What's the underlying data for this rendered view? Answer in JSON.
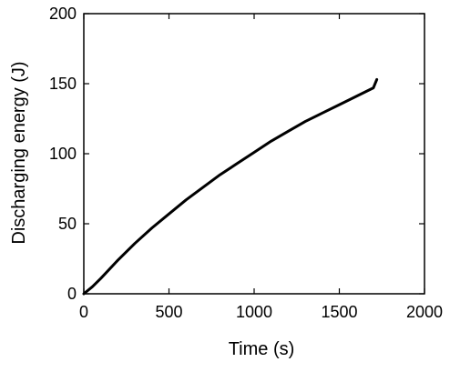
{
  "chart_data": {
    "type": "line",
    "title": "",
    "xlabel": "Time (s)",
    "ylabel": "Discharging energy (J)",
    "xlim": [
      0,
      2000
    ],
    "ylim": [
      0,
      200
    ],
    "xticks": [
      0,
      500,
      1000,
      1500,
      2000
    ],
    "yticks": [
      0,
      50,
      100,
      150,
      200
    ],
    "xtick_labels": [
      "0",
      "500",
      "1000",
      "1500",
      "2000"
    ],
    "ytick_labels": [
      "0",
      "50",
      "100",
      "150",
      "200"
    ],
    "grid": false,
    "legend": "none",
    "colors": {
      "line": "#000000",
      "axes": "#000000",
      "background": "#ffffff"
    },
    "series": [
      {
        "x": [
          0,
          50,
          100,
          200,
          300,
          400,
          500,
          600,
          700,
          800,
          900,
          1000,
          1100,
          1200,
          1300,
          1400,
          1500,
          1600,
          1700,
          1720
        ],
        "values": [
          0,
          5,
          11,
          24,
          36,
          47,
          57,
          67,
          76,
          85,
          93,
          101,
          109,
          116,
          123,
          129,
          135,
          141,
          147,
          153
        ]
      }
    ]
  }
}
